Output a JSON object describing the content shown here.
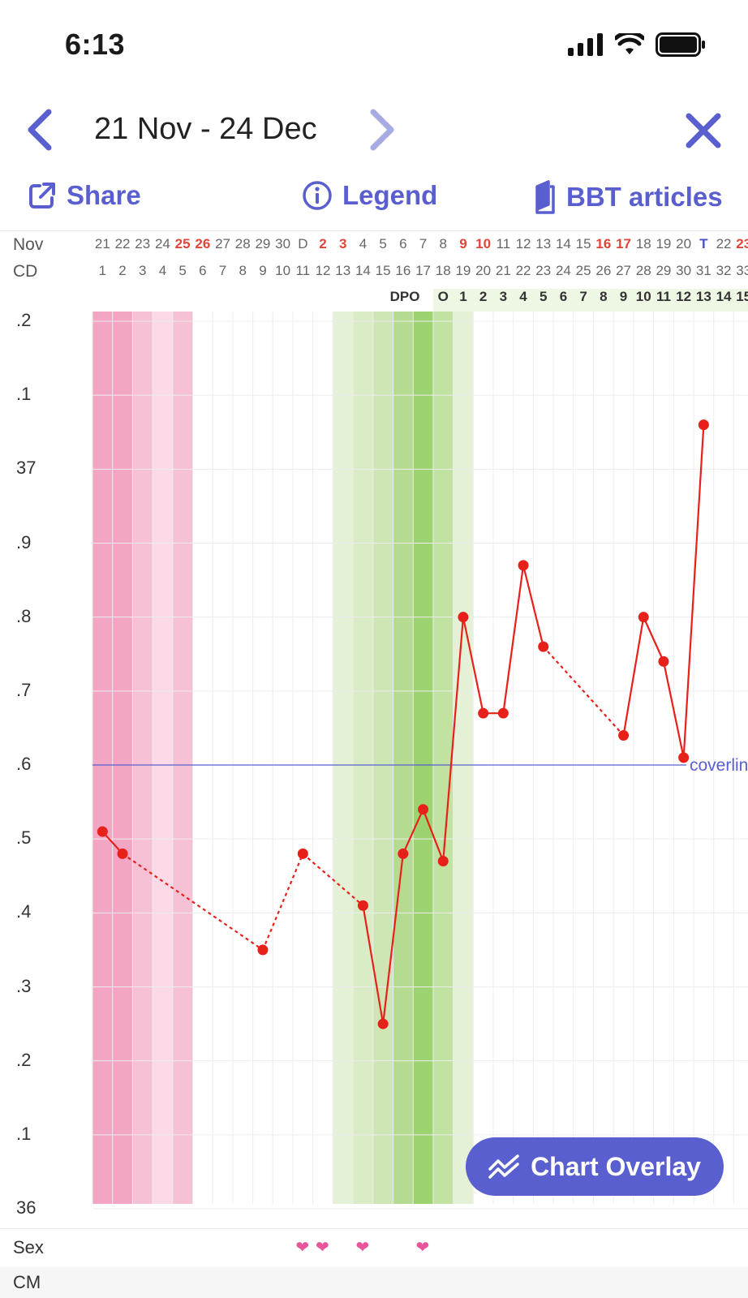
{
  "status_bar": {
    "time": "6:13"
  },
  "nav": {
    "title": "21 Nov - 24 Dec"
  },
  "actions": {
    "share": "Share",
    "legend": "Legend",
    "bbt": "BBT articles"
  },
  "rows": {
    "month_label": "Nov",
    "cd_label": "CD",
    "dpo_label": "DPO",
    "sex_label": "Sex",
    "cm_label": "CM",
    "dates": [
      "21",
      "22",
      "23",
      "24",
      "25",
      "26",
      "27",
      "28",
      "29",
      "30",
      "D",
      "2",
      "3",
      "4",
      "5",
      "6",
      "7",
      "8",
      "9",
      "10",
      "11",
      "12",
      "13",
      "14",
      "15",
      "16",
      "17",
      "18",
      "19",
      "20",
      "T",
      "22",
      "23"
    ],
    "date_styles": [
      "",
      "",
      "",
      "",
      "red",
      "red",
      "",
      "",
      "",
      "",
      "",
      "red",
      "red",
      "",
      "",
      "",
      "",
      "",
      "red",
      "red",
      "",
      "",
      "",
      "",
      "",
      "red",
      "red",
      "",
      "",
      "",
      "blue",
      "",
      "red"
    ],
    "cd": [
      "1",
      "2",
      "3",
      "4",
      "5",
      "6",
      "7",
      "8",
      "9",
      "10",
      "11",
      "12",
      "13",
      "14",
      "15",
      "16",
      "17",
      "18",
      "19",
      "20",
      "21",
      "22",
      "23",
      "24",
      "25",
      "26",
      "27",
      "28",
      "29",
      "30",
      "31",
      "32",
      "33"
    ],
    "dpo": [
      "O",
      "1",
      "2",
      "3",
      "4",
      "5",
      "6",
      "7",
      "8",
      "9",
      "10",
      "11",
      "12",
      "13",
      "14",
      "15"
    ]
  },
  "chart": {
    "y_axis_labels": [
      ".2",
      ".1",
      "37",
      ".9",
      ".8",
      ".7",
      ".6",
      ".5",
      ".4",
      ".3",
      ".2",
      ".1",
      "36"
    ],
    "coverline_label": "coverline",
    "colors": {
      "line": "#e8201a",
      "coverline": "#5a5fd0",
      "accent": "#5a5fd0",
      "heart": "#e8559b"
    }
  },
  "chart_data": {
    "type": "line",
    "series": [
      {
        "values": [
          {
            "cd": 1,
            "temp": 36.51
          },
          {
            "cd": 2,
            "temp": 36.48
          },
          {
            "cd": 9,
            "temp": 36.35
          },
          {
            "cd": 11,
            "temp": 36.48
          },
          {
            "cd": 14,
            "temp": 36.41
          },
          {
            "cd": 15,
            "temp": 36.25
          },
          {
            "cd": 16,
            "temp": 36.48
          },
          {
            "cd": 17,
            "temp": 36.54
          },
          {
            "cd": 18,
            "temp": 36.47
          },
          {
            "cd": 19,
            "temp": 36.8
          },
          {
            "cd": 20,
            "temp": 36.67
          },
          {
            "cd": 21,
            "temp": 36.67
          },
          {
            "cd": 22,
            "temp": 36.87
          },
          {
            "cd": 23,
            "temp": 36.76
          },
          {
            "cd": 27,
            "temp": 36.64
          },
          {
            "cd": 28,
            "temp": 36.8
          },
          {
            "cd": 29,
            "temp": 36.74
          },
          {
            "cd": 30,
            "temp": 36.61
          },
          {
            "cd": 31,
            "temp": 37.06
          }
        ]
      }
    ],
    "coverline": 36.6,
    "ylim": [
      36.0,
      37.2
    ],
    "xlim": [
      1,
      33
    ],
    "sex_days": [
      11,
      12,
      14,
      17
    ],
    "grid": true
  },
  "overlay_button": {
    "label": "Chart Overlay"
  }
}
